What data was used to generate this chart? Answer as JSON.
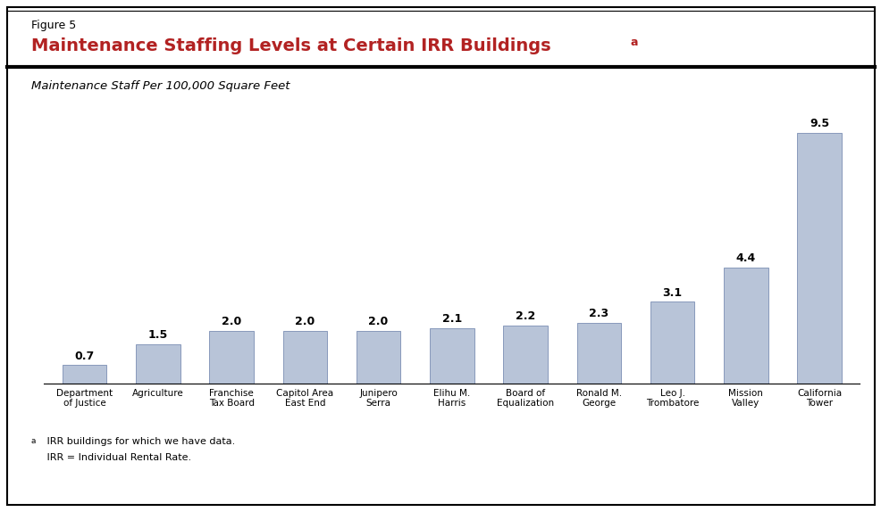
{
  "categories": [
    "Department\nof Justice",
    "Agriculture",
    "Franchise\nTax Board",
    "Capitol Area\nEast End",
    "Junipero\nSerra",
    "Elihu M.\nHarris",
    "Board of\nEqualization",
    "Ronald M.\nGeorge",
    "Leo J.\nTrombatore",
    "Mission\nValley",
    "California\nTower"
  ],
  "values": [
    0.7,
    1.5,
    2.0,
    2.0,
    2.0,
    2.1,
    2.2,
    2.3,
    3.1,
    4.4,
    9.5
  ],
  "bar_color": "#b8c4d8",
  "bar_edge_color": "#8899bb",
  "figure_title_label": "Figure 5",
  "title": "Maintenance Staffing Levels at Certain IRR Buildings",
  "title_superscript": "a",
  "subtitle": "Maintenance Staff Per 100,000 Square Feet",
  "footnote_sup": "a",
  "footnote_line1": " IRR buildings for which we have data.",
  "footnote_line2": " IRR = Individual Rental Rate.",
  "title_color": "#b22222",
  "figure_label_color": "#000000",
  "subtitle_color": "#000000",
  "ylim": [
    0,
    10.8
  ],
  "background_color": "#ffffff",
  "outer_box_color": "#000000",
  "bar_label_fontsize": 9,
  "xlabel_fontsize": 7.5,
  "title_fontsize": 14,
  "figure_label_fontsize": 9,
  "subtitle_fontsize": 9.5,
  "footnote_fontsize": 8
}
